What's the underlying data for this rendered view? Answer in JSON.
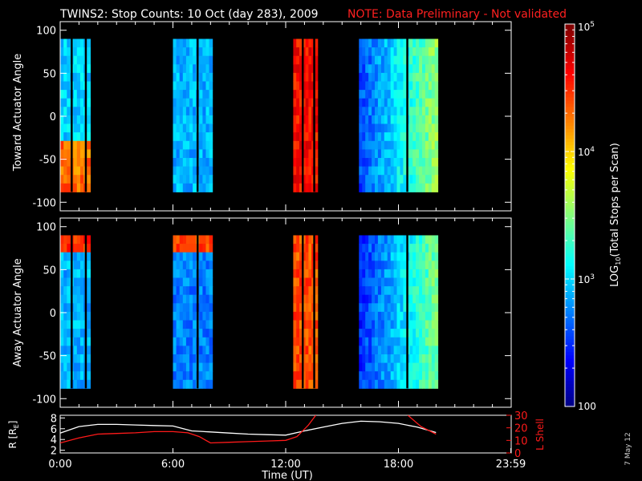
{
  "title": {
    "main": "TWINS2: Stop Counts: 10 Oct (day 283), 2009",
    "note": "NOTE: Data Preliminary - Not validated"
  },
  "footer_date": "7 May 12",
  "colors": {
    "background": "#000000",
    "axes": "#ffffff",
    "note": "#ff2020",
    "lshell": "#ff1a1a",
    "radius": "#ffffff"
  },
  "chart_data": [
    {
      "type": "heatmap",
      "panel": "toward",
      "ylabel": "Toward Actuator Angle",
      "ylim": [
        -110,
        110
      ],
      "yticks": [
        100,
        50,
        0,
        -50,
        -100
      ],
      "xlim": [
        0,
        24
      ],
      "angle_range": [
        -88,
        90
      ],
      "segments": [
        {
          "t0": 0.0,
          "t1": 1.6,
          "base": 3.0,
          "hot_band": [
            -90,
            -30
          ],
          "hot": 4.3
        },
        {
          "t0": 6.0,
          "t1": 8.1,
          "base": 2.9
        },
        {
          "t0": 12.4,
          "t1": 13.7,
          "base": 4.6
        },
        {
          "t0": 15.9,
          "t1": 20.1,
          "base": 2.6
        }
      ]
    },
    {
      "type": "heatmap",
      "panel": "away",
      "ylabel": "Away Actuator Angle",
      "ylim": [
        -110,
        110
      ],
      "yticks": [
        100,
        50,
        0,
        -50,
        -100
      ],
      "xlim": [
        0,
        24
      ],
      "angle_range": [
        -88,
        90
      ],
      "segments": [
        {
          "t0": 0.0,
          "t1": 1.6,
          "base": 2.9,
          "hot_band": [
            70,
            90
          ],
          "hot": 4.5
        },
        {
          "t0": 6.0,
          "t1": 8.1,
          "base": 2.75,
          "hot_band": [
            75,
            90
          ],
          "hot": 4.4
        },
        {
          "t0": 12.4,
          "t1": 13.7,
          "base": 4.4
        },
        {
          "t0": 15.9,
          "t1": 20.1,
          "base": 2.5
        }
      ]
    },
    {
      "type": "line",
      "panel": "orbit",
      "ylabel_left": "R [R",
      "ylabel_left_sub": "E",
      "ylabel_left_end": "]",
      "ylabel_right": "L Shell",
      "xlabel": "Time (UT)",
      "xticks": [
        "0:00",
        "6:00",
        "12:00",
        "18:00",
        "23:59"
      ],
      "xtick_values": [
        0,
        6,
        12,
        18,
        23.98
      ],
      "yticks_left": [
        2,
        4,
        6,
        8
      ],
      "ylim_left": [
        1.5,
        8.5
      ],
      "yticks_right": [
        0,
        10,
        20,
        30
      ],
      "ylim_right": [
        0,
        30
      ],
      "series": [
        {
          "name": "R",
          "x": [
            0,
            1,
            2,
            3,
            4,
            5,
            6,
            7,
            8,
            9,
            10,
            11,
            12,
            13,
            14,
            15,
            16,
            17,
            18,
            19,
            20
          ],
          "values": [
            5.2,
            6.4,
            6.8,
            6.8,
            6.7,
            6.6,
            6.5,
            5.6,
            5.4,
            5.2,
            5.0,
            4.9,
            4.8,
            5.6,
            6.3,
            7.0,
            7.4,
            7.3,
            7.0,
            6.3,
            5.3
          ]
        },
        {
          "name": "L Shell",
          "x": [
            0,
            1,
            2,
            3,
            4,
            5,
            6,
            6.8,
            7.4,
            8,
            9,
            10,
            11,
            12,
            12.6,
            13.2,
            13.6,
            18.5,
            19.2,
            20.0
          ],
          "values": [
            8,
            12,
            15,
            15.5,
            16,
            17,
            17,
            16,
            13,
            8,
            8.5,
            9,
            9.5,
            10,
            13,
            22,
            30,
            30,
            21,
            15
          ]
        }
      ]
    }
  ],
  "colorbar": {
    "label_prefix": "LOG",
    "label_sub": "10",
    "label_suffix": "(Total Stops per Scan)",
    "range": [
      2,
      5
    ],
    "tick_100": "100",
    "tick_1000_base": "10",
    "tick_1000_exp": "3",
    "tick_10000_base": "10",
    "tick_10000_exp": "4",
    "tick_100000_base": "10",
    "tick_100000_exp": "5"
  }
}
